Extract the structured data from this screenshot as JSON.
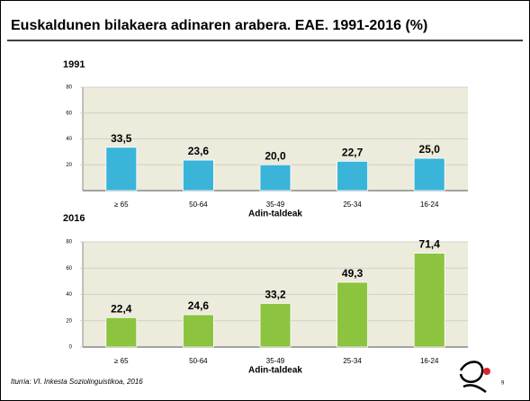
{
  "slide": {
    "title": "Euskaldunen bilakaera adinaren arabera. EAE. 1991-2016 (%)",
    "source": "Iturria: VI. Inkesta Soziolinguistikoa, 2016",
    "page": "9"
  },
  "chart_data": [
    {
      "type": "bar",
      "title": "1991",
      "x_label": "Adin-taldeak",
      "categories": [
        "≥ 65",
        "50-64",
        "35-49",
        "25-34",
        "16-24"
      ],
      "values": [
        33.5,
        23.6,
        20.0,
        22.7,
        25.0
      ],
      "value_labels": [
        "33,5",
        "23,6",
        "20,0",
        "22,7",
        "25,0"
      ],
      "color": "#3ab4d8",
      "ylim": [
        0,
        80
      ],
      "yticks": [
        20,
        40,
        60,
        80
      ],
      "grid": true
    },
    {
      "type": "bar",
      "title": "2016",
      "x_label": "Adin-taldeak",
      "categories": [
        "≥ 65",
        "50-64",
        "35-49",
        "25-34",
        "16-24"
      ],
      "values": [
        22.4,
        24.6,
        33.2,
        49.3,
        71.4
      ],
      "value_labels": [
        "22,4",
        "24,6",
        "33,2",
        "49,3",
        "71,4"
      ],
      "color": "#8cc440",
      "ylim": [
        0,
        80
      ],
      "yticks": [
        0,
        20,
        40,
        60,
        80
      ],
      "grid": true
    }
  ]
}
